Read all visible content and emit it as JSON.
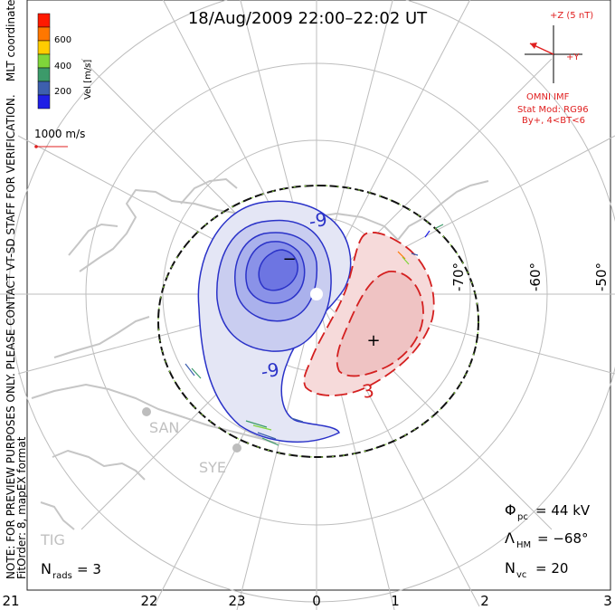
{
  "title": "18/Aug/2009  22:00–22:02  UT",
  "legend": {
    "ticks": [
      "600",
      "400",
      "200"
    ],
    "units": "Vel [m/s]",
    "colors": [
      "#ff1a00",
      "#ff7700",
      "#ffcc00",
      "#7fd63a",
      "#3c9a6a",
      "#3d5fae",
      "#1f1fe6"
    ]
  },
  "coord_label": "MLT coordinates",
  "scale_label": "1000 m/s",
  "imf": {
    "z_label": "+Z (5 nT)",
    "y_label": "+Y",
    "source": "OMNI IMF",
    "model": "Stat Mod: RG96",
    "conditions": "By+, 4<BT<6"
  },
  "lat_labels": [
    "-70°",
    "-60°",
    "-50°"
  ],
  "contour_labels": [
    "-9",
    "-9",
    "3"
  ],
  "extrema_markers": [
    "−",
    "+"
  ],
  "stations": [
    "SAN",
    "SYE",
    "TIG"
  ],
  "watermark": "NOTE: FOR PREVIEW PURPOSES ONLY. PLEASE CONTACT VT-SD STAFF FOR VERIFICATION.",
  "fit_order": "FitOrder: 8, mapEX format",
  "stats": {
    "phi_pc": {
      "symbol": "Φ",
      "sub": "pc",
      "value": "= 44 kV"
    },
    "lambda_hm": {
      "symbol": "Λ",
      "sub": "HM",
      "value": "= −68°"
    },
    "n_vc": {
      "symbol": "N",
      "sub": "vc",
      "value": "= 20"
    },
    "n_rads": {
      "symbol": "N",
      "sub": "rads",
      "value": "= 3"
    }
  },
  "mlt_ticks": [
    "21",
    "22",
    "23",
    "0",
    "1",
    "2",
    "3"
  ],
  "colors": {
    "negative_cell": "#2020c8",
    "positive_cell": "#d82020",
    "boundary": "#111111",
    "coast": "#c8c8c8",
    "grid": "#bdbdbd"
  }
}
